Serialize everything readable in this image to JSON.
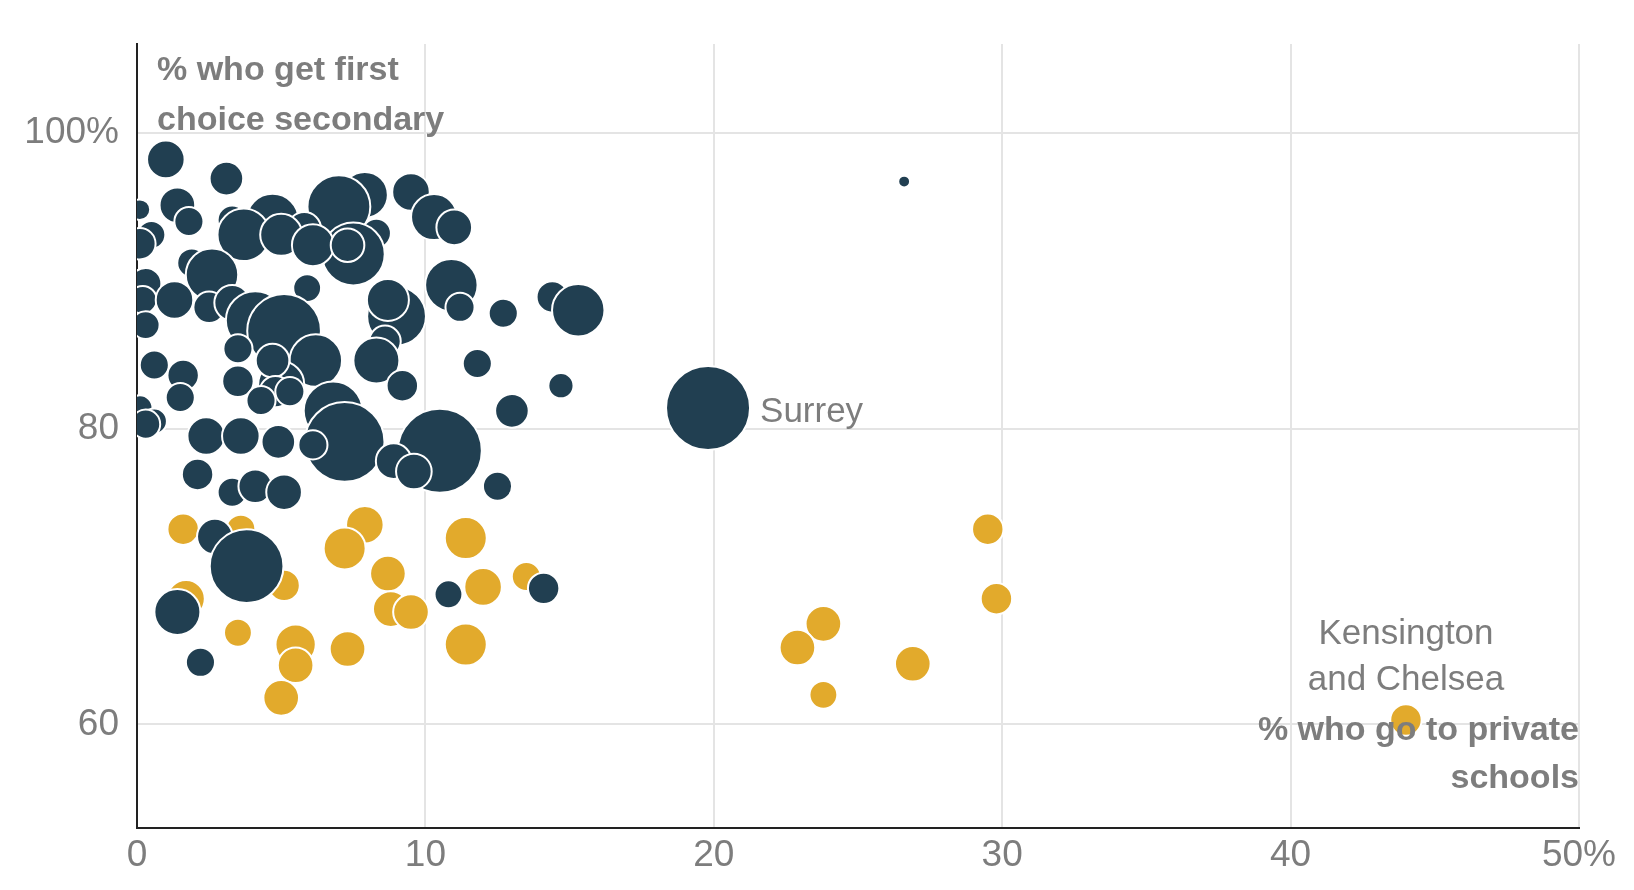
{
  "chart_data": {
    "type": "bubble",
    "xlabel": "% who go to private schools",
    "ylabel": "% who get first choice secondary",
    "xlim": [
      0,
      50
    ],
    "ylim": [
      53,
      106
    ],
    "xticks": [
      0,
      10,
      20,
      30,
      40,
      {
        "value": 50,
        "label": "50%"
      }
    ],
    "yticks": [
      60,
      80,
      {
        "value": 100,
        "label": "100%"
      }
    ],
    "grid": true,
    "legend": false,
    "annotations": [
      {
        "text": "Surrey",
        "x": 19.8,
        "y": 81.4
      },
      {
        "text": "Kensington and Chelsea",
        "x": 44.0,
        "y": 60.3
      }
    ],
    "series": [
      {
        "color": "#213f51",
        "x": [
          1.0,
          3.1,
          26.6,
          9.5,
          7.9,
          7.0,
          1.4,
          0.1,
          4.7,
          10.3,
          11.0,
          1.8,
          3.3,
          5.8,
          8.3,
          0.5,
          3.7,
          5.0,
          7.5,
          6.1,
          0.1,
          1.9,
          2.6,
          10.9,
          5.9,
          0.3,
          0.2,
          1.3,
          2.5,
          3.3,
          4.1,
          5.1,
          9.0,
          8.7,
          11.2,
          12.7,
          14.4,
          15.3,
          0.3,
          3.5,
          6.2,
          8.6,
          8.3,
          11.8,
          0.6,
          1.6,
          3.5,
          5.0,
          4.7,
          9.2,
          14.7,
          6.8,
          4.8,
          5.3,
          4.3,
          1.5,
          0.1,
          0.6,
          0.3,
          13.0,
          7.2,
          10.5,
          2.4,
          3.6,
          4.9,
          6.1,
          8.9,
          9.6,
          2.1,
          3.3,
          4.1,
          5.1,
          12.5,
          19.8,
          2.7,
          3.8,
          1.4,
          2.2,
          10.8,
          14.1,
          7.3
        ],
        "values": [
          98.2,
          96.9,
          96.7,
          96.0,
          95.8,
          95.0,
          95.1,
          94.8,
          94.1,
          94.3,
          93.6,
          94.0,
          94.1,
          93.5,
          93.2,
          93.1,
          93.1,
          93.1,
          91.8,
          92.4,
          92.5,
          91.2,
          90.4,
          89.7,
          89.5,
          89.8,
          88.7,
          88.7,
          88.2,
          88.5,
          87.3,
          86.6,
          87.6,
          88.7,
          88.2,
          87.8,
          88.9,
          88.0,
          87.0,
          85.4,
          84.6,
          85.9,
          84.6,
          84.4,
          84.3,
          83.6,
          83.2,
          83.0,
          84.6,
          82.9,
          82.9,
          81.2,
          82.5,
          82.5,
          81.9,
          82.1,
          81.4,
          80.5,
          80.3,
          81.2,
          79.1,
          78.5,
          79.5,
          79.5,
          79.1,
          78.9,
          77.8,
          77.1,
          76.9,
          75.7,
          76.1,
          75.7,
          76.1,
          81.4,
          72.7,
          70.7,
          67.6,
          64.2,
          68.8,
          69.2,
          92.4
        ],
        "sizes": [
          0.2,
          0.16,
          0.02,
          0.2,
          0.3,
          0.56,
          0.18,
          0.06,
          0.39,
          0.3,
          0.18,
          0.12,
          0.12,
          0.16,
          0.12,
          0.11,
          0.39,
          0.25,
          0.56,
          0.25,
          0.14,
          0.12,
          0.39,
          0.39,
          0.11,
          0.14,
          0.11,
          0.2,
          0.14,
          0.18,
          0.49,
          0.77,
          0.49,
          0.25,
          0.12,
          0.12,
          0.14,
          0.39,
          0.11,
          0.12,
          0.39,
          0.14,
          0.3,
          0.12,
          0.12,
          0.14,
          0.14,
          0.3,
          0.16,
          0.14,
          0.09,
          0.49,
          0.14,
          0.12,
          0.12,
          0.12,
          0.09,
          0.09,
          0.12,
          0.16,
          0.9,
          1,
          0.2,
          0.2,
          0.16,
          0.12,
          0.18,
          0.18,
          0.14,
          0.12,
          0.16,
          0.18,
          0.12,
          1,
          0.18,
          0.77,
          0.3,
          0.12,
          0.11,
          0.14,
          0.16
        ]
      },
      {
        "color": "#e2aa2c",
        "x": [
          1.6,
          3.6,
          7.9,
          7.2,
          11.4,
          8.7,
          12.0,
          13.5,
          5.1,
          1.7,
          8.8,
          9.5,
          3.5,
          5.5,
          5.5,
          7.3,
          11.4,
          5.0,
          29.5,
          29.8,
          23.8,
          22.9,
          26.9,
          23.8,
          44.0
        ],
        "values": [
          73.2,
          73.2,
          73.5,
          71.9,
          72.6,
          70.2,
          69.3,
          70.0,
          69.4,
          68.5,
          67.8,
          67.6,
          66.2,
          65.4,
          64.0,
          65.1,
          65.4,
          61.8,
          73.2,
          68.5,
          66.8,
          65.2,
          64.1,
          62.0,
          60.3
        ],
        "sizes": [
          0.14,
          0.12,
          0.2,
          0.25,
          0.25,
          0.18,
          0.2,
          0.12,
          0.14,
          0.2,
          0.18,
          0.18,
          0.11,
          0.23,
          0.18,
          0.18,
          0.25,
          0.18,
          0.14,
          0.14,
          0.18,
          0.18,
          0.18,
          0.11,
          0.14
        ]
      }
    ]
  }
}
